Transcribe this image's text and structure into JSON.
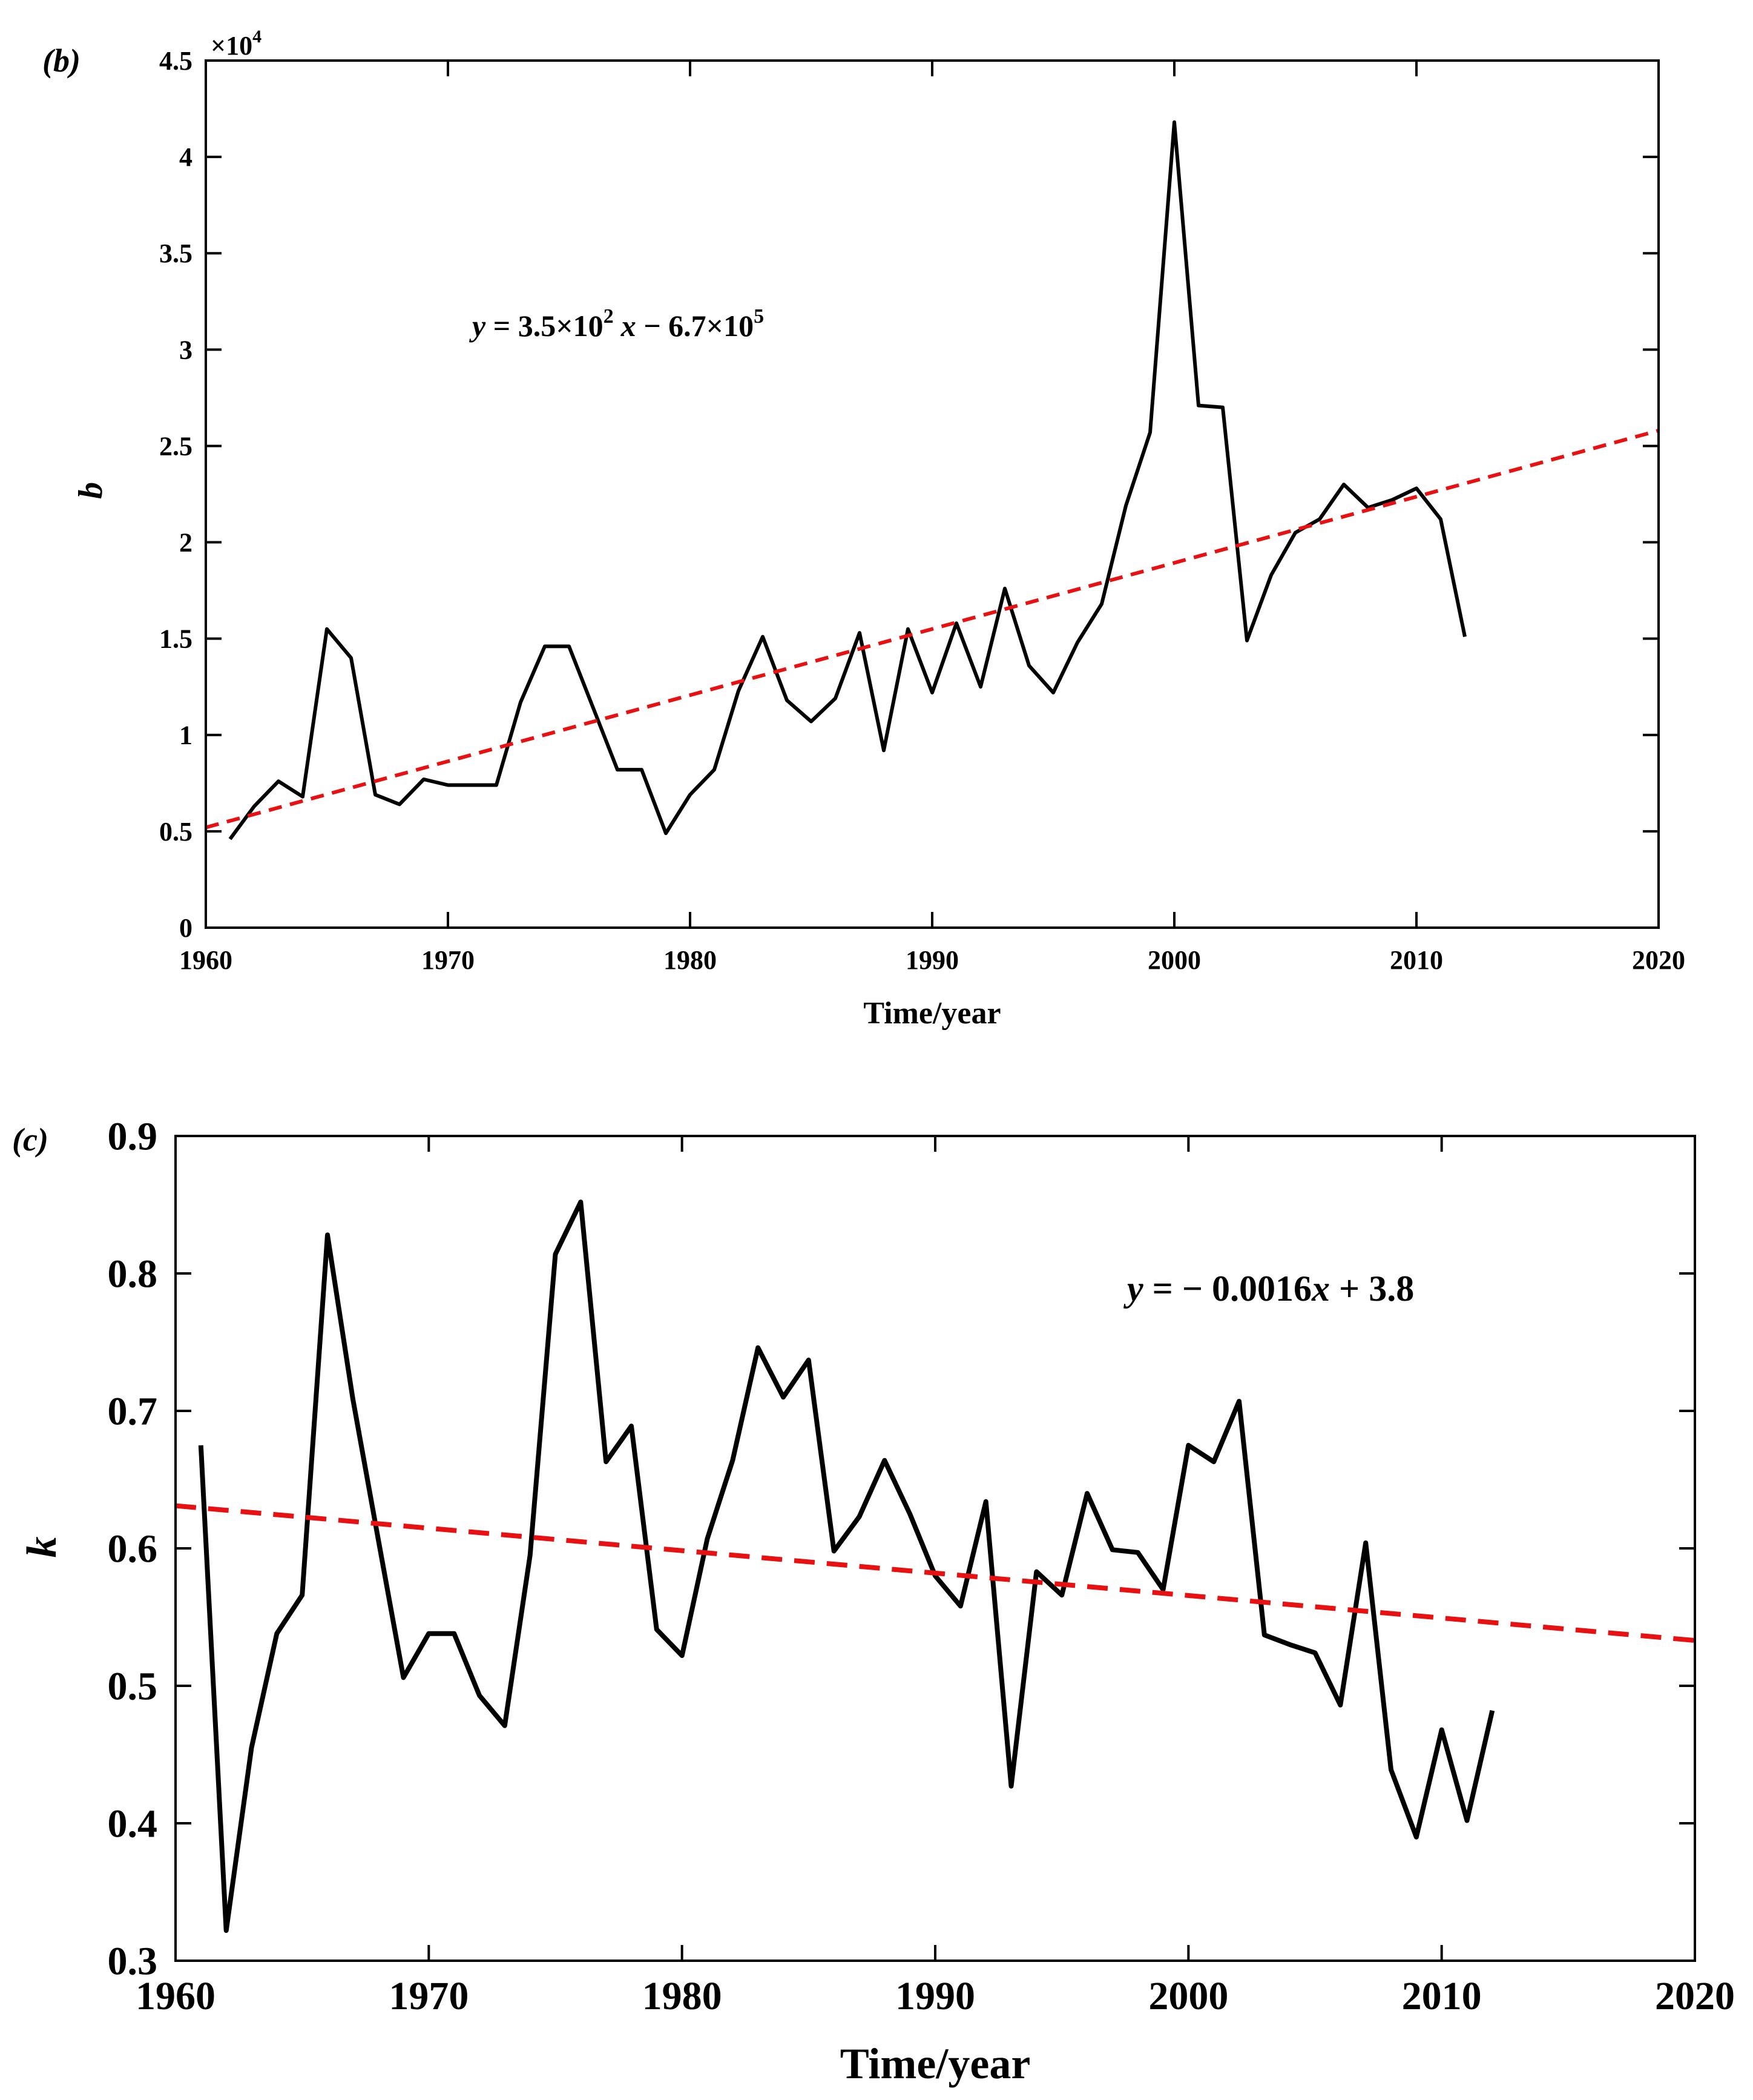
{
  "chart_data": [
    {
      "panel_label": "(b)",
      "type": "line",
      "xlabel": "Time/year",
      "ylabel": "b",
      "xlim": [
        1960,
        2020
      ],
      "ylim": [
        0,
        45000
      ],
      "x_ticks": [
        1960,
        1970,
        1980,
        1990,
        2000,
        2010,
        2020
      ],
      "y_ticks": [
        0,
        5000,
        10000,
        15000,
        20000,
        25000,
        30000,
        35000,
        40000,
        45000
      ],
      "y_tick_labels": [
        "0",
        "0.5",
        "1",
        "1.5",
        "2",
        "2.5",
        "3",
        "3.5",
        "4",
        "4.5"
      ],
      "y_exponent": "×10",
      "y_exponent_power": "4",
      "grid": false,
      "series": [
        {
          "name": "b",
          "color": "#000000",
          "x": [
            1961,
            1962,
            1963,
            1964,
            1965,
            1966,
            1967,
            1968,
            1969,
            1970,
            1971,
            1972,
            1973,
            1974,
            1975,
            1976,
            1977,
            1978,
            1979,
            1980,
            1981,
            1982,
            1983,
            1984,
            1985,
            1986,
            1987,
            1988,
            1989,
            1990,
            1991,
            1992,
            1993,
            1994,
            1995,
            1996,
            1997,
            1998,
            1999,
            2000,
            2001,
            2002,
            2003,
            2004,
            2005,
            2006,
            2007,
            2008,
            2009,
            2010,
            2011,
            2012
          ],
          "values": [
            4600,
            6300,
            7600,
            6800,
            15500,
            14000,
            6900,
            6400,
            7700,
            7400,
            7400,
            7400,
            11700,
            14600,
            14600,
            11400,
            8200,
            8200,
            4900,
            6900,
            8200,
            12300,
            15100,
            11800,
            10700,
            11900,
            15300,
            9200,
            15500,
            12200,
            15800,
            12500,
            17600,
            13600,
            12200,
            14800,
            16800,
            21900,
            25700,
            41800,
            27100,
            27000,
            14900,
            18300,
            20500,
            21200,
            23000,
            21800,
            22200,
            22800,
            21200,
            15100
          ]
        },
        {
          "name": "linear fit",
          "color": "#e81010",
          "dashed": true,
          "x": [
            1960,
            2020
          ],
          "values": [
            5200,
            25800
          ]
        }
      ],
      "annotation": {
        "y_var": "y",
        "eq_mid": " = 3.5×10",
        "exp1": "2",
        "x_var": "x",
        "eq_tail": " − 6.7×10",
        "exp2": "5"
      }
    },
    {
      "panel_label": "(c)",
      "type": "line",
      "xlabel": "Time/year",
      "ylabel": "k",
      "xlim": [
        1960,
        2020
      ],
      "ylim": [
        0.3,
        0.9
      ],
      "x_ticks": [
        1960,
        1970,
        1980,
        1990,
        2000,
        2010,
        2020
      ],
      "y_ticks": [
        0.3,
        0.4,
        0.5,
        0.6,
        0.7,
        0.8,
        0.9
      ],
      "y_tick_labels": [
        "0.3",
        "0.4",
        "0.5",
        "0.6",
        "0.7",
        "0.8",
        "0.9"
      ],
      "grid": false,
      "series": [
        {
          "name": "k",
          "color": "#000000",
          "x": [
            1961,
            1962,
            1963,
            1964,
            1965,
            1966,
            1967,
            1968,
            1969,
            1970,
            1971,
            1972,
            1973,
            1974,
            1975,
            1976,
            1977,
            1978,
            1979,
            1980,
            1981,
            1982,
            1983,
            1984,
            1985,
            1986,
            1987,
            1988,
            1989,
            1990,
            1991,
            1992,
            1993,
            1994,
            1995,
            1996,
            1997,
            1998,
            1999,
            2000,
            2001,
            2002,
            2003,
            2004,
            2005,
            2006,
            2007,
            2008,
            2009,
            2010,
            2011,
            2012
          ],
          "values": [
            0.675,
            0.322,
            0.455,
            0.538,
            0.566,
            0.828,
            0.709,
            0.607,
            0.506,
            0.538,
            0.538,
            0.493,
            0.471,
            0.595,
            0.814,
            0.852,
            0.663,
            0.689,
            0.541,
            0.522,
            0.607,
            0.664,
            0.746,
            0.71,
            0.737,
            0.598,
            0.623,
            0.664,
            0.625,
            0.58,
            0.558,
            0.634,
            0.427,
            0.583,
            0.566,
            0.64,
            0.599,
            0.597,
            0.57,
            0.675,
            0.663,
            0.707,
            0.537,
            0.53,
            0.524,
            0.486,
            0.604,
            0.439,
            0.39,
            0.468,
            0.402,
            0.482
          ]
        },
        {
          "name": "linear fit",
          "color": "#e81010",
          "dashed": true,
          "x": [
            1960,
            2020
          ],
          "values": [
            0.631,
            0.533
          ]
        }
      ],
      "annotation": {
        "y_var": "y",
        "eq_mid": " = − 0.0016",
        "x_var": "x",
        "eq_tail": " + 3.8"
      }
    }
  ]
}
